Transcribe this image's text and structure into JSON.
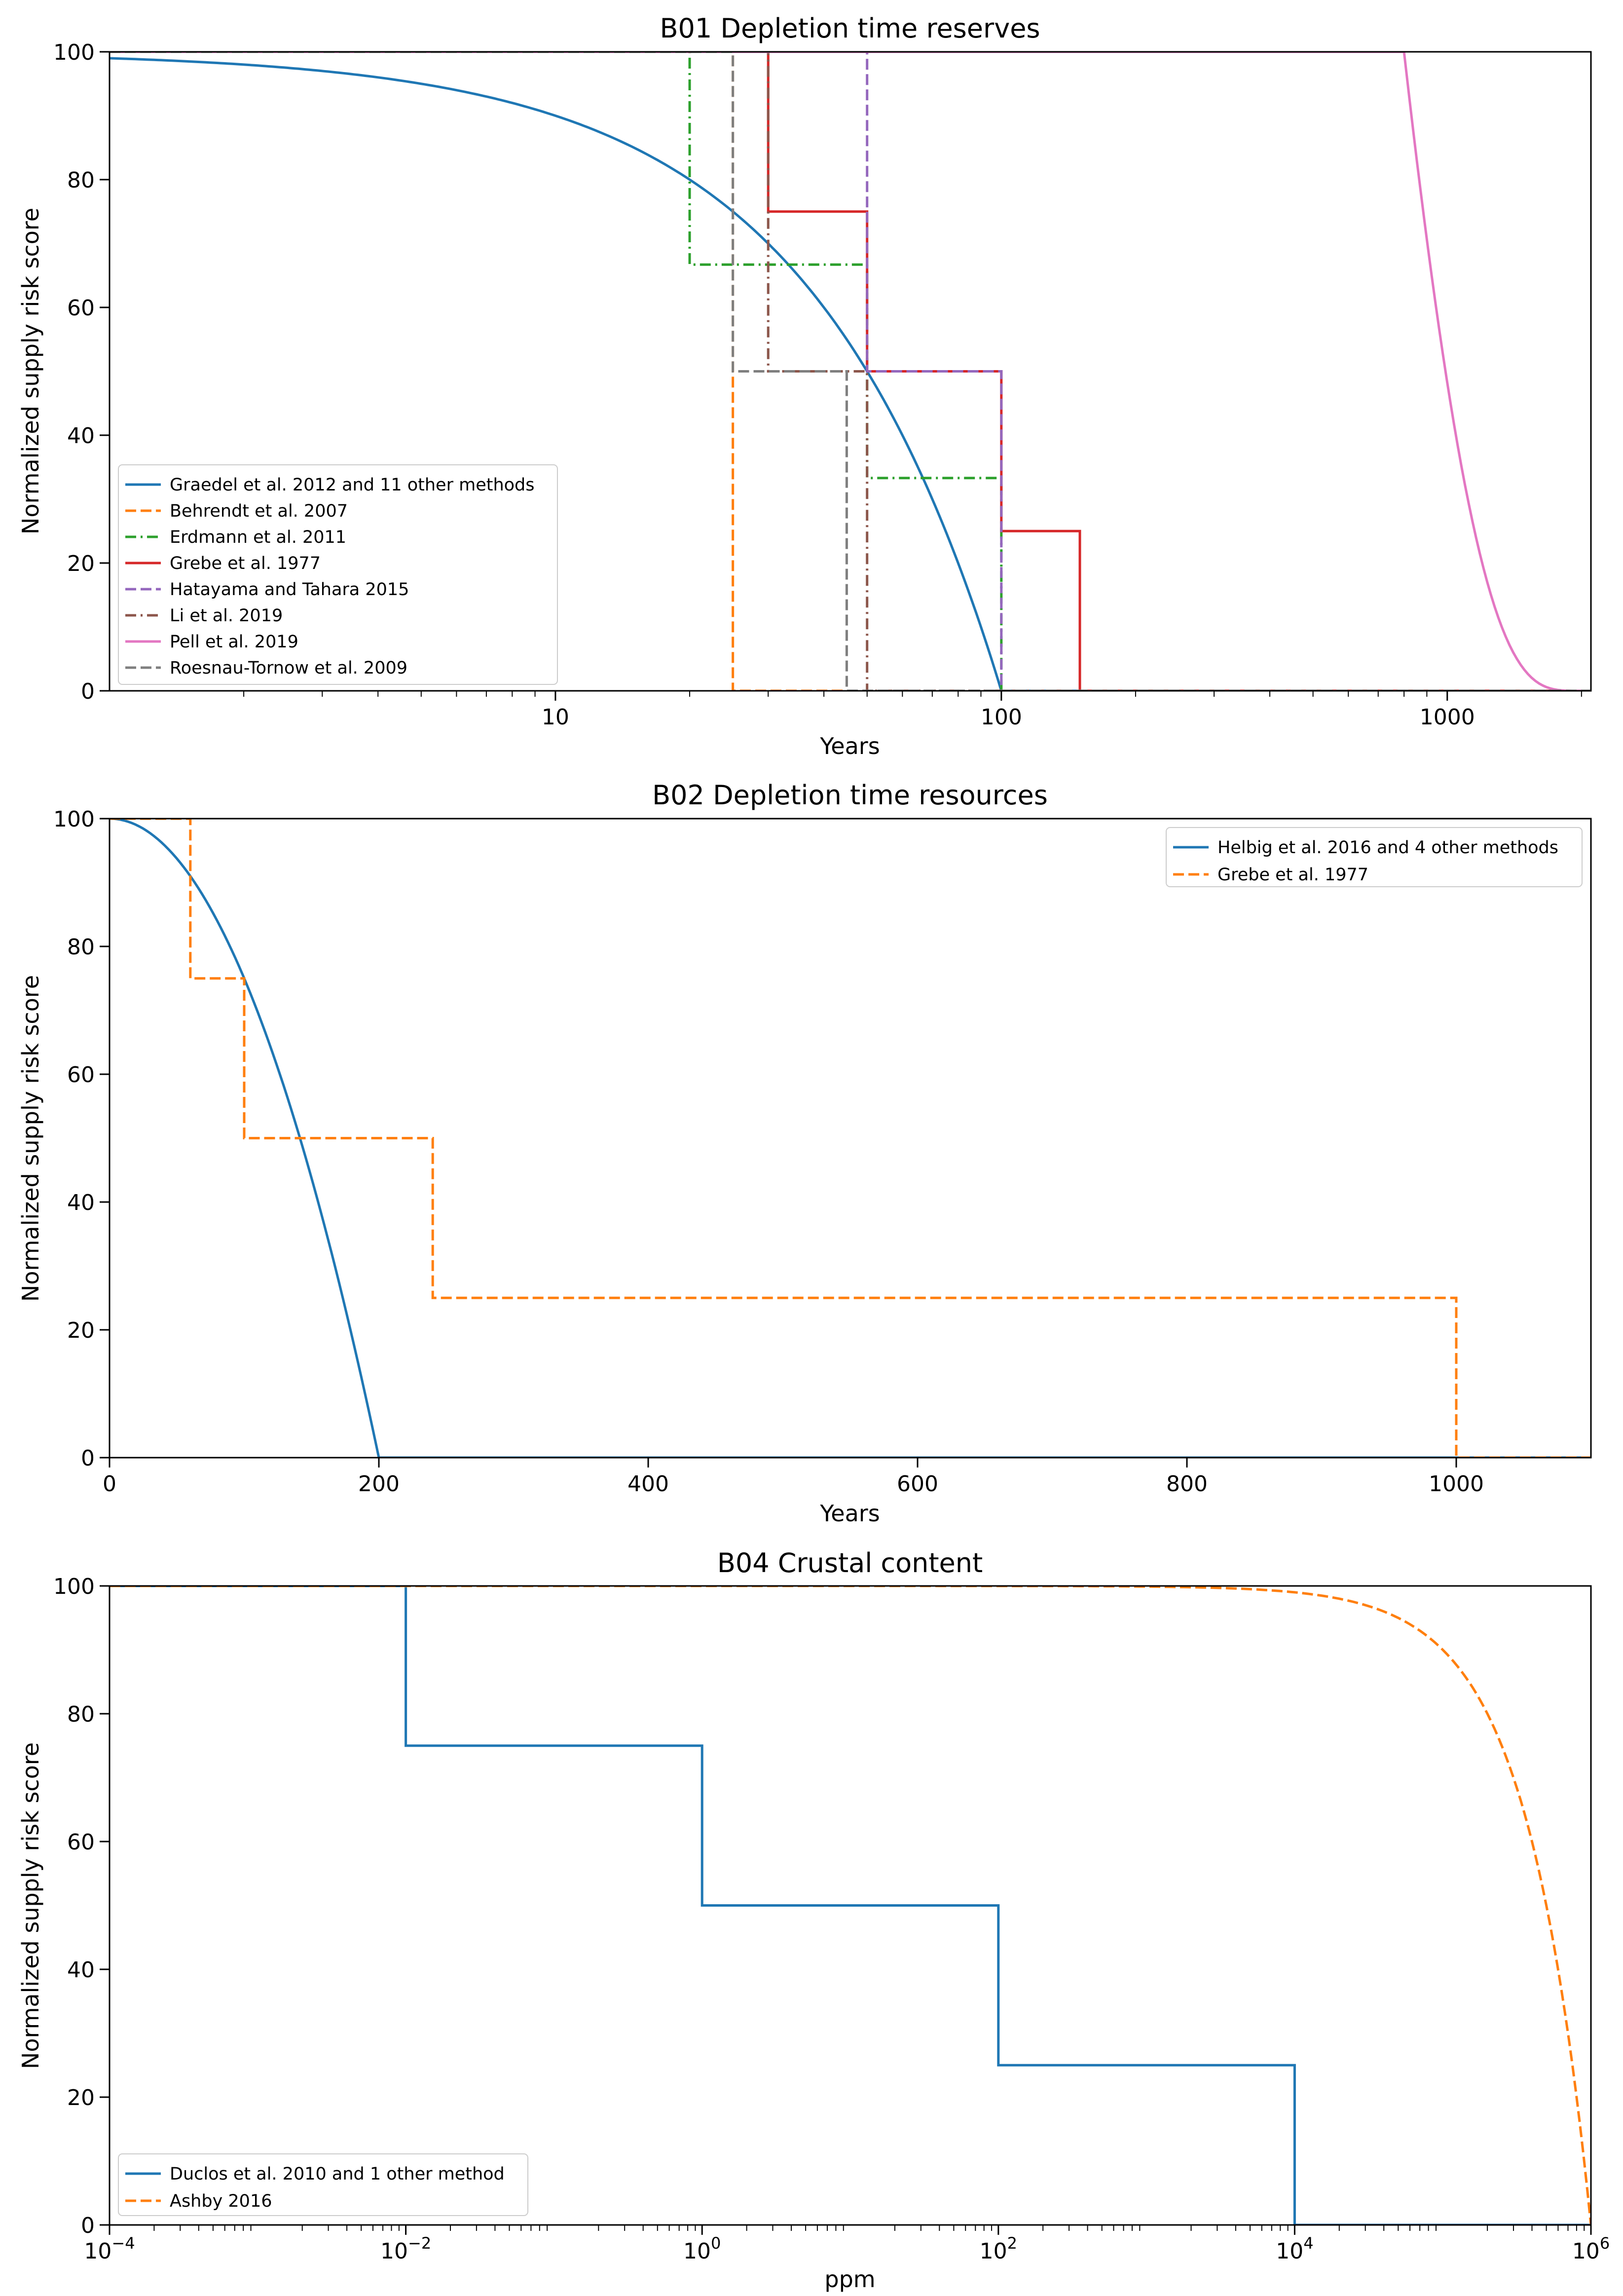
{
  "figure": {
    "background": "#ffffff"
  },
  "chart_data": [
    {
      "id": "b01",
      "type": "line",
      "title": "B01 Depletion time reserves",
      "xlabel": "Years",
      "ylabel": "Normalized supply risk score",
      "xscale": "log",
      "xlim": [
        1,
        2100
      ],
      "ylim": [
        0,
        100
      ],
      "xticks": [
        {
          "value": 10,
          "label": "10"
        },
        {
          "value": 100,
          "label": "100"
        },
        {
          "value": 1000,
          "label": "1000"
        }
      ],
      "yticks": [
        {
          "value": 0,
          "label": "0"
        },
        {
          "value": 20,
          "label": "20"
        },
        {
          "value": 40,
          "label": "40"
        },
        {
          "value": 60,
          "label": "60"
        },
        {
          "value": 80,
          "label": "80"
        },
        {
          "value": 100,
          "label": "100"
        }
      ],
      "legend_position": "bottom-left",
      "series": [
        {
          "name": "Graedel et al. 2012 and 11 other methods",
          "color": "#1f77b4",
          "style": "solid",
          "kind": "curve",
          "formula": "linear-decay",
          "x0": 0,
          "x1": 100,
          "x_end": 2100
        },
        {
          "name": "Behrendt et al. 2007",
          "color": "#ff7f0e",
          "style": "dashed",
          "kind": "step",
          "points": [
            [
              1,
              100
            ],
            [
              25,
              100
            ],
            [
              25,
              0
            ],
            [
              2100,
              0
            ]
          ]
        },
        {
          "name": "Erdmann et al. 2011",
          "color": "#2ca02c",
          "style": "dashdot",
          "kind": "step",
          "points": [
            [
              1,
              100
            ],
            [
              20,
              100
            ],
            [
              20,
              66.7
            ],
            [
              50,
              66.7
            ],
            [
              50,
              33.3
            ],
            [
              100,
              33.3
            ],
            [
              100,
              0
            ],
            [
              2100,
              0
            ]
          ]
        },
        {
          "name": "Grebe et al. 1977",
          "color": "#d62728",
          "style": "solid",
          "kind": "step",
          "points": [
            [
              1,
              100
            ],
            [
              30,
              100
            ],
            [
              30,
              75
            ],
            [
              50,
              75
            ],
            [
              50,
              50
            ],
            [
              100,
              50
            ],
            [
              100,
              25
            ],
            [
              150,
              25
            ],
            [
              150,
              0
            ],
            [
              2100,
              0
            ]
          ]
        },
        {
          "name": "Hatayama and Tahara 2015",
          "color": "#9467bd",
          "style": "dashed",
          "kind": "step",
          "points": [
            [
              1,
              100
            ],
            [
              50,
              100
            ],
            [
              50,
              50
            ],
            [
              100,
              50
            ],
            [
              100,
              0
            ],
            [
              2100,
              0
            ]
          ]
        },
        {
          "name": "Li et al. 2019",
          "color": "#8c564b",
          "style": "dashdot",
          "kind": "step",
          "points": [
            [
              1,
              100
            ],
            [
              30,
              100
            ],
            [
              30,
              50
            ],
            [
              50,
              50
            ],
            [
              50,
              0
            ],
            [
              2100,
              0
            ]
          ]
        },
        {
          "name": "Pell et al. 2019",
          "color": "#e377c2",
          "style": "solid",
          "kind": "curve",
          "formula": "power-decay-4",
          "x0": 800,
          "x1": 2000,
          "x_end": 2100
        },
        {
          "name": "Roesnau-Tornow et al. 2009",
          "color": "#7f7f7f",
          "style": "dashed",
          "kind": "step",
          "points": [
            [
              1,
              100
            ],
            [
              25,
              100
            ],
            [
              25,
              50
            ],
            [
              45,
              50
            ],
            [
              45,
              0
            ],
            [
              2100,
              0
            ]
          ]
        }
      ]
    },
    {
      "id": "b02",
      "type": "line",
      "title": "B02 Depletion time resources",
      "xlabel": "Years",
      "ylabel": "Normalized supply risk score",
      "xscale": "linear",
      "xlim": [
        0,
        1100
      ],
      "ylim": [
        0,
        100
      ],
      "xticks": [
        {
          "value": 0,
          "label": "0"
        },
        {
          "value": 200,
          "label": "200"
        },
        {
          "value": 400,
          "label": "400"
        },
        {
          "value": 600,
          "label": "600"
        },
        {
          "value": 800,
          "label": "800"
        },
        {
          "value": 1000,
          "label": "1000"
        }
      ],
      "yticks": [
        {
          "value": 0,
          "label": "0"
        },
        {
          "value": 20,
          "label": "20"
        },
        {
          "value": 40,
          "label": "40"
        },
        {
          "value": 60,
          "label": "60"
        },
        {
          "value": 80,
          "label": "80"
        },
        {
          "value": 100,
          "label": "100"
        }
      ],
      "legend_position": "top-right",
      "series": [
        {
          "name": "Helbig et al. 2016 and 4 other methods",
          "color": "#1f77b4",
          "style": "solid",
          "kind": "curve",
          "formula": "quadratic-decay",
          "x0": 0,
          "x1": 200,
          "x_end": 1100
        },
        {
          "name": "Grebe et al. 1977",
          "color": "#ff7f0e",
          "style": "dashed",
          "kind": "step",
          "points": [
            [
              0,
              100
            ],
            [
              60,
              100
            ],
            [
              60,
              75
            ],
            [
              100,
              75
            ],
            [
              100,
              50
            ],
            [
              240,
              50
            ],
            [
              240,
              25
            ],
            [
              1000,
              25
            ],
            [
              1000,
              0
            ],
            [
              1100,
              0
            ]
          ]
        }
      ]
    },
    {
      "id": "b04",
      "type": "line",
      "title": "B04 Crustal content",
      "xlabel": "ppm",
      "ylabel": "Normalized supply risk score",
      "xscale": "log",
      "xlim": [
        0.0001,
        1000000
      ],
      "ylim": [
        0,
        100
      ],
      "xticks": [
        {
          "value": 0.0001,
          "base": "10",
          "exp": "−4"
        },
        {
          "value": 0.01,
          "base": "10",
          "exp": "−2"
        },
        {
          "value": 1,
          "base": "10",
          "exp": "0"
        },
        {
          "value": 100,
          "base": "10",
          "exp": "2"
        },
        {
          "value": 10000,
          "base": "10",
          "exp": "4"
        },
        {
          "value": 1000000,
          "base": "10",
          "exp": "6"
        }
      ],
      "yticks": [
        {
          "value": 0,
          "label": "0"
        },
        {
          "value": 20,
          "label": "20"
        },
        {
          "value": 40,
          "label": "40"
        },
        {
          "value": 60,
          "label": "60"
        },
        {
          "value": 80,
          "label": "80"
        },
        {
          "value": 100,
          "label": "100"
        }
      ],
      "legend_position": "bottom-left",
      "series": [
        {
          "name": "Duclos et al. 2010 and 1 other method",
          "color": "#1f77b4",
          "style": "solid",
          "kind": "step",
          "points": [
            [
              0.0001,
              100
            ],
            [
              0.01,
              100
            ],
            [
              0.01,
              75
            ],
            [
              1,
              75
            ],
            [
              1,
              50
            ],
            [
              100,
              50
            ],
            [
              100,
              25
            ],
            [
              10000,
              25
            ],
            [
              10000,
              0
            ],
            [
              1000000,
              0
            ]
          ]
        },
        {
          "name": "Ashby 2016",
          "color": "#ff7f0e",
          "style": "dashed",
          "kind": "curve",
          "formula": "linear-decay",
          "x0": 0,
          "x1": 1000000,
          "x_end": 1000000
        }
      ]
    }
  ]
}
